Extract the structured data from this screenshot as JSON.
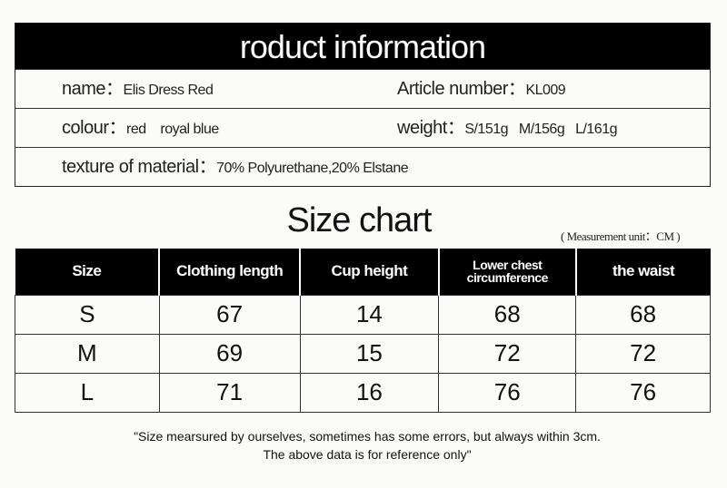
{
  "product_info": {
    "title": "roduct information",
    "name_label": "name：",
    "name_value": "Elis Dress Red",
    "article_label": "Article number：",
    "article_value": "KL009",
    "colour_label": "colour：",
    "colour_value": "red    royal blue",
    "weight_label": "weight：",
    "weight_value": "S/151g   M/156g   L/161g",
    "material_label": "texture of material：",
    "material_value": "70% Polyurethane,20% Elstane"
  },
  "size_chart": {
    "title": "Size chart",
    "unit": "( Measurement unit：CM )",
    "headers": [
      "Size",
      "Clothing length",
      "Cup height",
      "Lower chest circumference",
      "the waist"
    ],
    "rows": [
      [
        "S",
        "67",
        "14",
        "68",
        "68"
      ],
      [
        "M",
        "69",
        "15",
        "72",
        "72"
      ],
      [
        "L",
        "71",
        "16",
        "76",
        "76"
      ]
    ]
  },
  "note": {
    "line1": "\"Size mearsured by ourselves, sometimes has some errors, but always within 3cm.",
    "line2": "The above data is for reference only\""
  }
}
